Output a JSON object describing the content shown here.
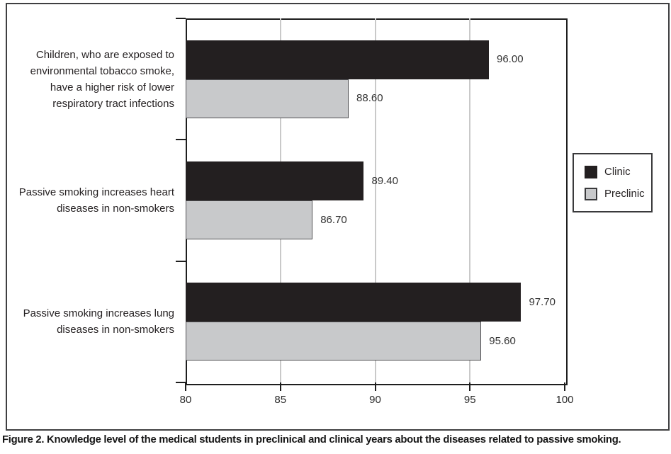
{
  "figure": {
    "caption": "Figure 2. Knowledge level of the medical students in preclinical and clinical years about the diseases related to passive smoking."
  },
  "legend": {
    "items": [
      {
        "label": "Clinic",
        "color": "#231f20"
      },
      {
        "label": "Preclinic",
        "color": "#c8c9cb"
      }
    ]
  },
  "chart_data": {
    "type": "bar",
    "orientation": "horizontal",
    "title": "",
    "xlabel": "",
    "ylabel": "",
    "xlim": [
      80,
      100
    ],
    "xticks": [
      80,
      85,
      90,
      95,
      100
    ],
    "xtick_labels": [
      "80",
      "85",
      "90",
      "95",
      "100"
    ],
    "grid": true,
    "legend_position": "right",
    "categories": [
      "Children, who are exposed to environmental tobacco smoke, have a higher risk of lower respiratory tract infections",
      "Passive smoking increases heart diseases in non-smokers",
      "Passive smoking increases lung diseases in non-smokers"
    ],
    "category_lines": [
      [
        "Children, who are exposed to",
        "environmental tobacco smoke,",
        "have a higher risk of lower",
        "respiratory tract infections"
      ],
      [
        "Passive smoking increases heart",
        "diseases in non-smokers"
      ],
      [
        "Passive smoking increases lung",
        "diseases in non-smokers"
      ]
    ],
    "series": [
      {
        "name": "Clinic",
        "color": "#231f20",
        "values": [
          96.0,
          89.4,
          97.7
        ],
        "labels": [
          "96.00",
          "89.40",
          "97.70"
        ]
      },
      {
        "name": "Preclinic",
        "color": "#c8c9cb",
        "values": [
          88.6,
          86.7,
          95.6
        ],
        "labels": [
          "88.60",
          "86.70",
          "95.60"
        ]
      }
    ]
  }
}
